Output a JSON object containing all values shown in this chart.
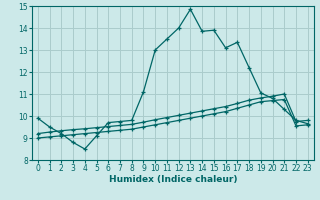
{
  "xlabel": "Humidex (Indice chaleur)",
  "xlim": [
    -0.5,
    23.5
  ],
  "ylim": [
    8,
    15
  ],
  "xticks": [
    0,
    1,
    2,
    3,
    4,
    5,
    6,
    7,
    8,
    9,
    10,
    11,
    12,
    13,
    14,
    15,
    16,
    17,
    18,
    19,
    20,
    21,
    22,
    23
  ],
  "yticks": [
    8,
    9,
    10,
    11,
    12,
    13,
    14,
    15
  ],
  "bg_color": "#cce9e9",
  "line_color": "#006666",
  "grid_color": "#aacccc",
  "line1_x": [
    0,
    1,
    2,
    3,
    4,
    5,
    6,
    7,
    8,
    9,
    10,
    11,
    12,
    13,
    14,
    15,
    16,
    17,
    18,
    19,
    20,
    21,
    22,
    23
  ],
  "line1_y": [
    9.9,
    9.5,
    9.2,
    8.8,
    8.5,
    9.1,
    9.7,
    9.75,
    9.8,
    11.1,
    13.0,
    13.5,
    14.0,
    14.85,
    13.85,
    13.9,
    13.1,
    13.35,
    12.2,
    11.05,
    10.8,
    10.3,
    9.8,
    9.65
  ],
  "line2_x": [
    0,
    1,
    2,
    3,
    4,
    5,
    6,
    7,
    8,
    9,
    10,
    11,
    12,
    13,
    14,
    15,
    16,
    17,
    18,
    19,
    20,
    21,
    22,
    23
  ],
  "line2_y": [
    9.0,
    9.05,
    9.1,
    9.15,
    9.2,
    9.25,
    9.3,
    9.35,
    9.4,
    9.5,
    9.6,
    9.7,
    9.8,
    9.9,
    10.0,
    10.1,
    10.2,
    10.35,
    10.5,
    10.65,
    10.7,
    10.75,
    9.55,
    9.6
  ],
  "line3_x": [
    0,
    1,
    2,
    3,
    4,
    5,
    6,
    7,
    8,
    9,
    10,
    11,
    12,
    13,
    14,
    15,
    16,
    17,
    18,
    19,
    20,
    21,
    22,
    23
  ],
  "line3_y": [
    9.2,
    9.27,
    9.33,
    9.38,
    9.42,
    9.47,
    9.52,
    9.57,
    9.62,
    9.72,
    9.83,
    9.93,
    10.03,
    10.13,
    10.23,
    10.33,
    10.43,
    10.57,
    10.72,
    10.82,
    10.9,
    11.0,
    9.75,
    9.8
  ]
}
